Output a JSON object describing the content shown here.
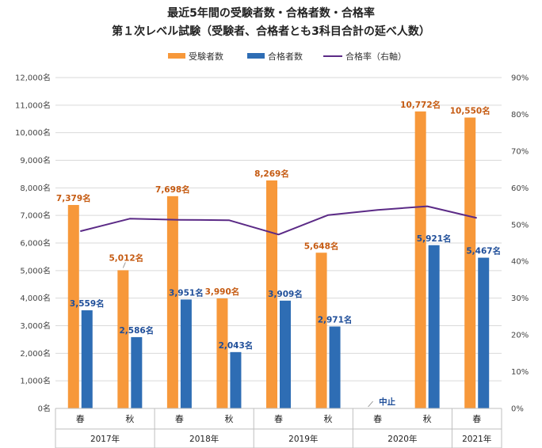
{
  "chart_data": {
    "type": "bar",
    "title_line1": "最近5年間の受験者数・合格者数・合格率",
    "title_line2": "第１次レベル試験（受験者、合格者とも3科目合計の延べ人数）",
    "categories": [
      "春",
      "秋",
      "春",
      "秋",
      "春",
      "秋",
      "春",
      "秋",
      "春"
    ],
    "years": [
      "2017年",
      "2018年",
      "2019年",
      "2020年",
      "2021年"
    ],
    "year_spans": [
      2,
      2,
      2,
      2,
      1
    ],
    "series": [
      {
        "name": "受験者数",
        "color": "#f7983a",
        "label_color": "#c55a11",
        "values": [
          7379,
          5012,
          7698,
          3990,
          8269,
          5648,
          null,
          10772,
          10550
        ],
        "labels": [
          "7,379名",
          "5,012名",
          "7,698名",
          "3,990名",
          "8,269名",
          "5,648名",
          "",
          "10,772名",
          "10,550名"
        ]
      },
      {
        "name": "合格者数",
        "color": "#2e6db4",
        "label_color": "#1f4e99",
        "values": [
          3559,
          2586,
          3951,
          2043,
          3909,
          2971,
          null,
          5921,
          5467
        ],
        "labels": [
          "3,559名",
          "2,586名",
          "3,951名",
          "2,043名",
          "3,909名",
          "2,971名",
          "",
          "5,921名",
          "5,467名"
        ]
      },
      {
        "name": "合格率（右軸）",
        "color": "#5b2a86",
        "axis": "right",
        "values": [
          48.2,
          51.6,
          51.3,
          51.2,
          47.3,
          52.6,
          54.0,
          55.0,
          51.8
        ]
      }
    ],
    "annotation": {
      "text": "中止",
      "category_index": 6
    },
    "y_left": {
      "min": 0,
      "max": 12000,
      "ticks": [
        "0名",
        "1,000名",
        "2,000名",
        "3,000名",
        "4,000名",
        "5,000名",
        "6,000名",
        "7,000名",
        "8,000名",
        "9,000名",
        "10,000名",
        "11,000名",
        "12,000名"
      ]
    },
    "y_right": {
      "min": 0,
      "max": 90,
      "ticks": [
        "0%",
        "10%",
        "20%",
        "30%",
        "40%",
        "50%",
        "60%",
        "70%",
        "80%",
        "90%"
      ]
    },
    "legend_position": "top-center",
    "grid": true
  }
}
